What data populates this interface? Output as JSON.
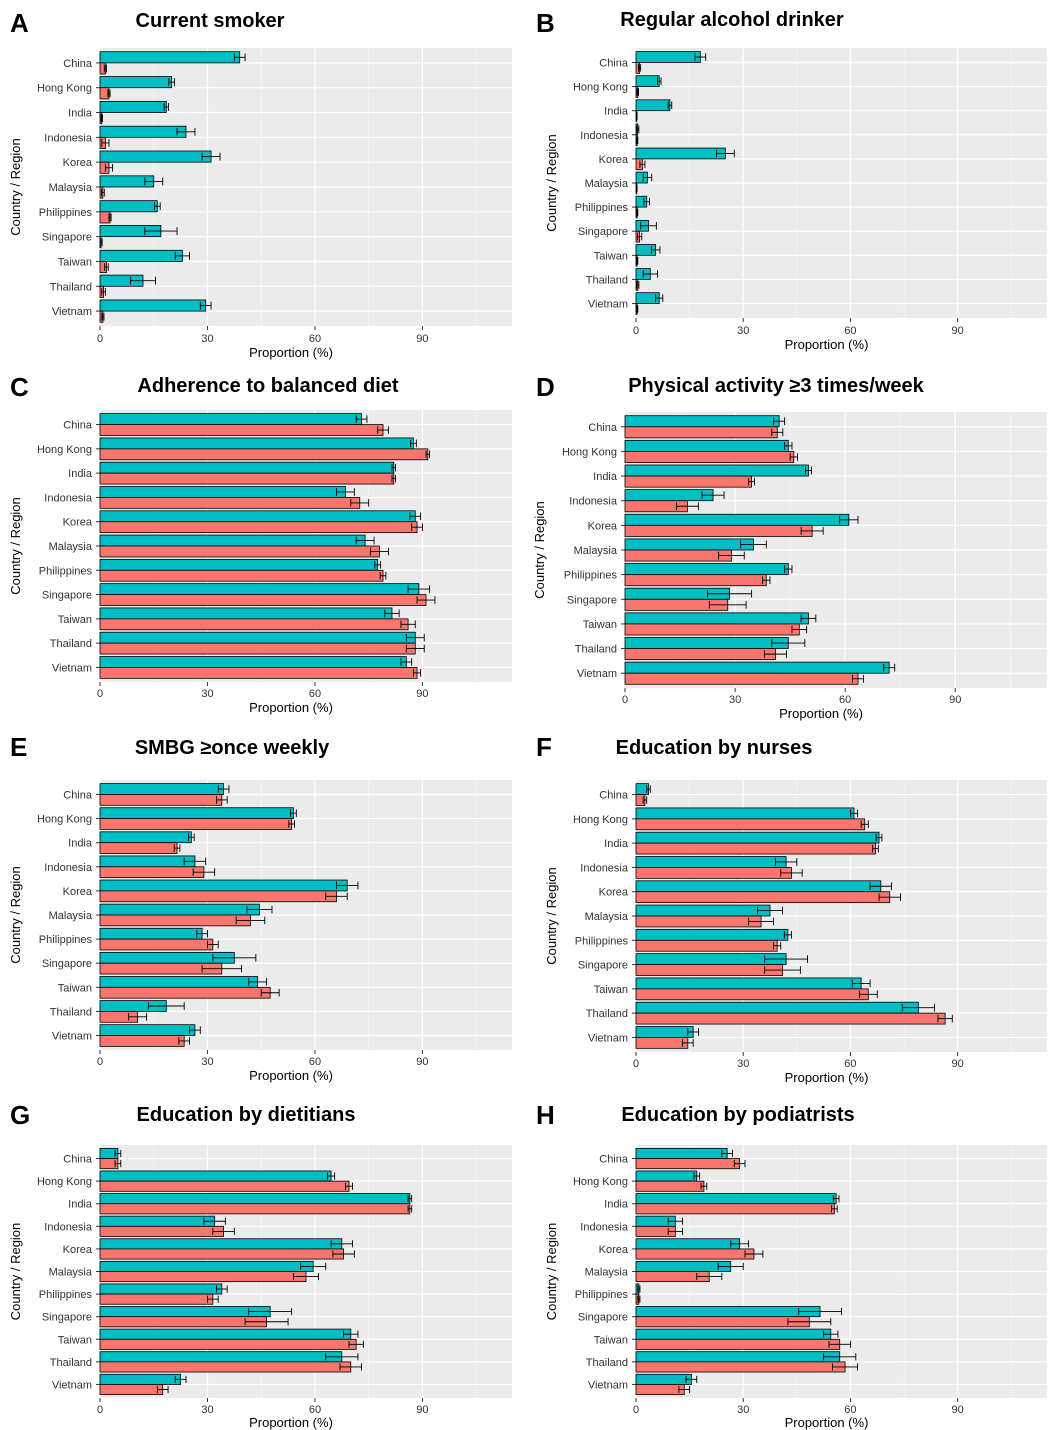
{
  "figure": {
    "series_colors": [
      "#00BFC4",
      "#F8766D"
    ],
    "panel_background": "#EBEBEB",
    "gridline_color": "#FFFFFF"
  },
  "chart_data": [
    {
      "letter": "A",
      "title": "Current smoker",
      "type": "bar",
      "orientation": "horizontal",
      "xlabel": "Proportion (%)",
      "ylabel": "Country / Region",
      "xlim": [
        0,
        115
      ],
      "xticks": [
        0,
        30,
        60,
        90
      ],
      "grid": true,
      "categories": [
        "China",
        "Hong Kong",
        "India",
        "Indonesia",
        "Korea",
        "Malaysia",
        "Philippines",
        "Singapore",
        "Taiwan",
        "Thailand",
        "Vietnam"
      ],
      "series": [
        {
          "values": [
            39,
            20,
            18.5,
            24,
            31,
            15,
            16,
            17,
            23,
            12,
            29.5
          ],
          "errors": [
            1.5,
            0.8,
            0.6,
            2.5,
            2.5,
            2.5,
            0.8,
            4.5,
            2,
            3.5,
            1.5
          ]
        },
        {
          "values": [
            1.5,
            2.5,
            0.5,
            1.5,
            2.5,
            0.8,
            2.8,
            0.3,
            1.8,
            1,
            0.8
          ],
          "errors": [
            0.3,
            0.3,
            0.2,
            1,
            1,
            0.4,
            0.3,
            0.3,
            0.5,
            0.5,
            0.3
          ]
        }
      ]
    },
    {
      "letter": "B",
      "title": "Regular alcohol drinker",
      "type": "bar",
      "orientation": "horizontal",
      "xlabel": "Proportion (%)",
      "ylabel": "Country / Region",
      "xlim": [
        0,
        115
      ],
      "xticks": [
        0,
        30,
        60,
        90
      ],
      "grid": true,
      "categories": [
        "China",
        "Hong Kong",
        "India",
        "Indonesia",
        "Korea",
        "Malaysia",
        "Philippines",
        "Singapore",
        "Taiwan",
        "Thailand",
        "Vietnam"
      ],
      "series": [
        {
          "values": [
            18,
            6.5,
            9.5,
            0.5,
            25,
            3.2,
            3,
            3.5,
            5.5,
            4,
            6.5
          ],
          "errors": [
            1.5,
            0.5,
            0.5,
            0.3,
            2.5,
            1.2,
            0.8,
            2.2,
            1.2,
            2,
            1
          ]
        },
        {
          "values": [
            1,
            0.5,
            0.2,
            0.3,
            1.8,
            0.2,
            0.3,
            1,
            0.3,
            0.5,
            0.3
          ],
          "errors": [
            0.3,
            0.2,
            0.1,
            0.2,
            0.7,
            0.1,
            0.2,
            0.6,
            0.2,
            0.3,
            0.2
          ]
        }
      ]
    },
    {
      "letter": "C",
      "title": "Adherence to balanced diet",
      "type": "bar",
      "orientation": "horizontal",
      "xlabel": "Proportion (%)",
      "ylabel": "Country / Region",
      "xlim": [
        0,
        115
      ],
      "xticks": [
        0,
        30,
        60,
        90
      ],
      "grid": true,
      "categories": [
        "China",
        "Hong Kong",
        "India",
        "Indonesia",
        "Korea",
        "Malaysia",
        "Philippines",
        "Singapore",
        "Taiwan",
        "Thailand",
        "Vietnam"
      ],
      "series": [
        {
          "values": [
            73,
            87.5,
            82,
            68.5,
            88,
            74,
            77.5,
            89,
            81.5,
            88,
            85.5
          ],
          "errors": [
            1.5,
            0.8,
            0.5,
            2.5,
            1.5,
            2.5,
            0.8,
            3,
            2,
            2.5,
            1.5
          ]
        },
        {
          "values": [
            79,
            91.5,
            82,
            72.5,
            88.5,
            78,
            79,
            91,
            86,
            88,
            88.5
          ],
          "errors": [
            1.5,
            0.5,
            0.5,
            2.5,
            1.5,
            2.5,
            0.8,
            2.5,
            2,
            2.5,
            1
          ]
        }
      ]
    },
    {
      "letter": "D",
      "title": "Physical activity ≥3 times/week",
      "type": "bar",
      "orientation": "horizontal",
      "xlabel": "Proportion (%)",
      "ylabel": "Country / Region",
      "xlim": [
        0,
        115
      ],
      "xticks": [
        0,
        30,
        60,
        90
      ],
      "grid": true,
      "categories": [
        "China",
        "Hong Kong",
        "India",
        "Indonesia",
        "Korea",
        "Malaysia",
        "Philippines",
        "Singapore",
        "Taiwan",
        "Thailand",
        "Vietnam"
      ],
      "series": [
        {
          "values": [
            42,
            44.5,
            50,
            24,
            61,
            35,
            44.5,
            28.5,
            50,
            44.5,
            72
          ],
          "errors": [
            1.5,
            1,
            0.8,
            3,
            2.5,
            3.5,
            1,
            6,
            2,
            4.5,
            1.5
          ]
        },
        {
          "values": [
            41.5,
            46,
            34.5,
            17,
            51,
            29,
            38.5,
            28,
            47.5,
            41,
            63.5
          ],
          "errors": [
            1.5,
            1,
            0.8,
            3,
            3,
            3.5,
            1,
            5,
            2,
            3,
            1.5
          ]
        }
      ]
    },
    {
      "letter": "E",
      "title": "SMBG ≥once weekly",
      "type": "bar",
      "orientation": "horizontal",
      "xlabel": "Proportion (%)",
      "ylabel": "Country / Region",
      "xlim": [
        0,
        115
      ],
      "xticks": [
        0,
        30,
        60,
        90
      ],
      "grid": true,
      "categories": [
        "China",
        "Hong Kong",
        "India",
        "Indonesia",
        "Korea",
        "Malaysia",
        "Philippines",
        "Singapore",
        "Taiwan",
        "Thailand",
        "Vietnam"
      ],
      "series": [
        {
          "values": [
            34.5,
            54,
            25.5,
            26.5,
            69,
            44.5,
            28.5,
            37.5,
            44,
            18.5,
            26.5
          ],
          "errors": [
            1.5,
            0.8,
            0.8,
            3,
            3,
            3.5,
            1.5,
            6,
            2.5,
            5,
            1.5
          ]
        },
        {
          "values": [
            34,
            53.5,
            21.5,
            29,
            66,
            42,
            31.5,
            34,
            47.5,
            10.5,
            23.5
          ],
          "errors": [
            1.5,
            0.8,
            0.8,
            3,
            3,
            4,
            1.5,
            5.5,
            2.5,
            2.5,
            1.5
          ]
        }
      ]
    },
    {
      "letter": "F",
      "title": "Education by nurses",
      "type": "bar",
      "orientation": "horizontal",
      "xlabel": "Proportion (%)",
      "ylabel": "Country / Region",
      "xlim": [
        0,
        115
      ],
      "xticks": [
        0,
        30,
        60,
        90
      ],
      "grid": true,
      "categories": [
        "China",
        "Hong Kong",
        "India",
        "Indonesia",
        "Korea",
        "Malaysia",
        "Philippines",
        "Singapore",
        "Taiwan",
        "Thailand",
        "Vietnam"
      ],
      "series": [
        {
          "values": [
            3.5,
            61,
            68,
            42,
            68.5,
            37.5,
            42.5,
            42,
            63,
            79,
            16
          ],
          "errors": [
            0.5,
            1,
            0.8,
            3,
            3,
            3.5,
            1,
            6,
            2.5,
            4.5,
            1.5
          ]
        },
        {
          "values": [
            2.5,
            64,
            67,
            43.5,
            71,
            35,
            39.5,
            41,
            65,
            86.5,
            14.5
          ],
          "errors": [
            0.5,
            1,
            0.8,
            3,
            3,
            3.5,
            1,
            5,
            2.5,
            2,
            1.5
          ]
        }
      ]
    },
    {
      "letter": "G",
      "title": "Education by dietitians",
      "type": "bar",
      "orientation": "horizontal",
      "xlabel": "Proportion (%)",
      "ylabel": "Country / Region",
      "xlim": [
        0,
        115
      ],
      "xticks": [
        0,
        30,
        60,
        90
      ],
      "grid": true,
      "categories": [
        "China",
        "Hong Kong",
        "India",
        "Indonesia",
        "Korea",
        "Malaysia",
        "Philippines",
        "Singapore",
        "Taiwan",
        "Thailand",
        "Vietnam"
      ],
      "series": [
        {
          "values": [
            5,
            64.5,
            86.5,
            32,
            67.5,
            59.5,
            34,
            47.5,
            70,
            67.5,
            22.5
          ],
          "errors": [
            0.8,
            1,
            0.5,
            3,
            3,
            3.5,
            1.5,
            6,
            2,
            4.5,
            1.5
          ]
        },
        {
          "values": [
            5,
            69.5,
            86.5,
            34.5,
            68,
            57.5,
            31.5,
            46.5,
            71.5,
            70,
            17.5
          ],
          "errors": [
            0.8,
            1,
            0.5,
            3,
            3,
            3.5,
            1.5,
            6,
            2,
            3,
            1.5
          ]
        }
      ]
    },
    {
      "letter": "H",
      "title": "Education by podiatrists",
      "type": "bar",
      "orientation": "horizontal",
      "xlabel": "Proportion (%)",
      "ylabel": "Country / Region",
      "xlim": [
        0,
        115
      ],
      "xticks": [
        0,
        30,
        60,
        90
      ],
      "grid": true,
      "categories": [
        "China",
        "Hong Kong",
        "India",
        "Indonesia",
        "Korea",
        "Malaysia",
        "Philippines",
        "Singapore",
        "Taiwan",
        "Thailand",
        "Vietnam"
      ],
      "series": [
        {
          "values": [
            25.5,
            17,
            56,
            11,
            29,
            26.5,
            0.8,
            51.5,
            54.5,
            57,
            15.5
          ],
          "errors": [
            1.5,
            0.8,
            0.8,
            2,
            2.5,
            3.5,
            0.3,
            6,
            2,
            4.5,
            1.5
          ]
        },
        {
          "values": [
            29,
            19,
            55.5,
            11,
            33,
            20.5,
            0.8,
            48.5,
            57,
            58.5,
            13.5
          ],
          "errors": [
            1.5,
            0.8,
            0.8,
            2,
            2.5,
            3.5,
            0.3,
            6,
            3,
            3.5,
            1.5
          ]
        }
      ]
    }
  ]
}
